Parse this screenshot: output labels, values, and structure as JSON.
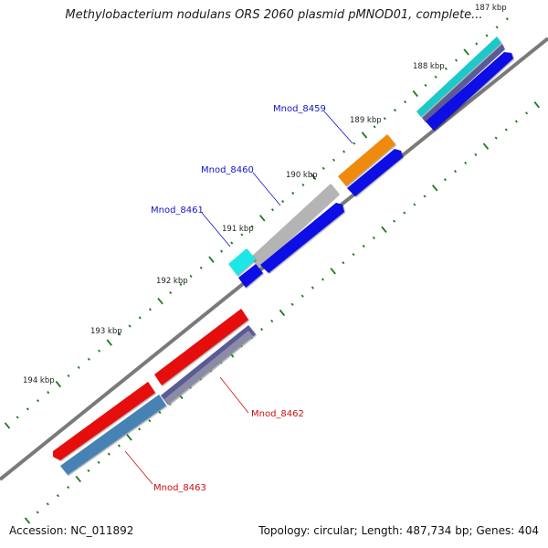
{
  "title": "Methylobacterium nodulans ORS 2060 plasmid pMNOD01, complete...",
  "footer": {
    "accession": "Accession: NC_011892",
    "summary": "Topology: circular; Length: 487,734 bp; Genes: 404"
  },
  "ticks": [
    {
      "label": "187 kbp"
    },
    {
      "label": "188 kbp"
    },
    {
      "label": "189 kbp"
    },
    {
      "label": "190 kbp"
    },
    {
      "label": "191 kbp"
    },
    {
      "label": "192 kbp"
    },
    {
      "label": "193 kbp"
    },
    {
      "label": "194 kbp"
    }
  ],
  "gene_labels": [
    {
      "name": "Mnod_8459",
      "color": "#1414c8"
    },
    {
      "name": "Mnod_8460",
      "color": "#1414c8"
    },
    {
      "name": "Mnod_8461",
      "color": "#1414c8"
    },
    {
      "name": "Mnod_8462",
      "color": "#cc1010"
    },
    {
      "name": "Mnod_8463",
      "color": "#cc1010"
    }
  ],
  "colors": {
    "backbone": "#7a7a7a",
    "tick_green": "#1c7a1c",
    "forward_cds_blue": "#0a0ae6",
    "reverse_cds_red": "#e60a0a",
    "orange": "#f08a10",
    "cyan": "#1ee6e6",
    "grey": "#b4b4b4",
    "steel_blue": "#4682b4",
    "slate": "#5a5a96"
  }
}
